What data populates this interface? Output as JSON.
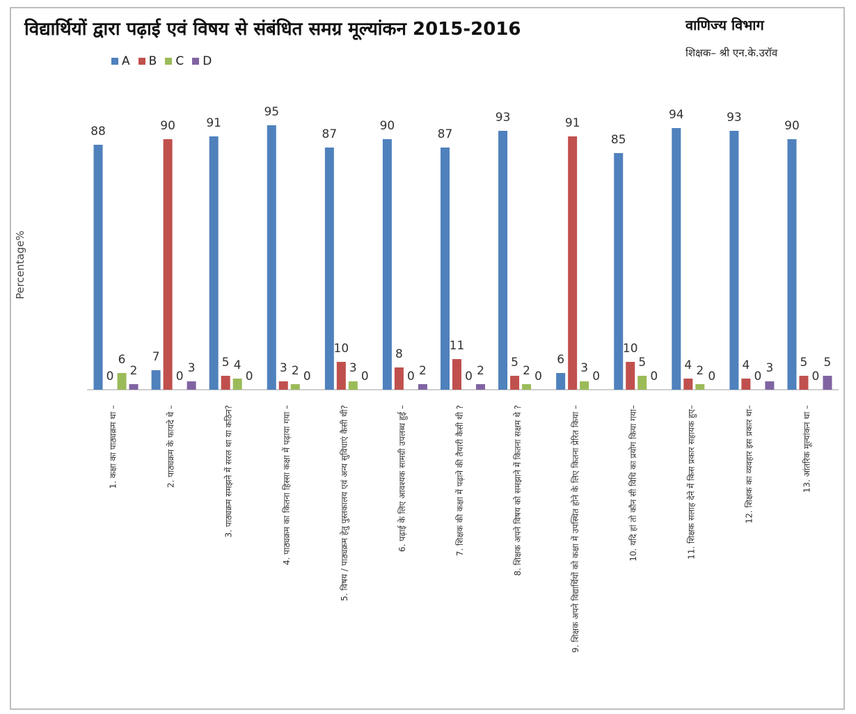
{
  "header": {
    "title": "विद्यार्थियों द्वारा पढ़ाई एवं विषय से संबंधित समग्र मूल्यांकन 2015-2016",
    "department": "वाणिज्य विभाग",
    "teacher": "शिक्षक– श्री एन.के.उरॉव"
  },
  "colors": {
    "A": "#4f81bd",
    "B": "#c0504d",
    "C": "#9bbb59",
    "D": "#8064a2"
  },
  "chart_data": {
    "type": "bar",
    "title": "विद्यार्थियों द्वारा पढ़ाई एवं विषय से संबंधित समग्र मूल्यांकन 2015-2016",
    "ylabel": "Percentage%",
    "xlabel": "",
    "legend_position": "top-left",
    "grid": false,
    "ylim": [
      0,
      100
    ],
    "categories": [
      "1. कक्षा का पाठ्यक्रम था –",
      "2. पाठ्यक्रम के फायदे थे –",
      "3. पाठ्यक्रम समझने में सरल था या कठिन?",
      "4. पाठ्यक्रम का कितना हिस्सा कक्षा में पढ़ाया गया –",
      "5. विषय / पाठ्यक्रम हेतु पुस्तकालय एवं अन्य सुविधाएं कैसी थी?",
      "6. पढ़ाई के लिए आवश्यक सामग्री उपलब्ध हुई –",
      "7. शिक्षक की कक्षा में पढ़ाने की तैयारी कैसी थी ?",
      "8. शिक्षक अपने विषय को समझाने में कितना सक्षम थे ?",
      "9. शिक्षक अपने विद्यार्थियों को कक्षा में उपस्थित होने के लिए कितना प्रेरित किया –",
      "10. यदि हां तो कौन सी विधि का प्रयोग किया गया–",
      "11. शिक्षक सलाह देने में किस प्रकार सहायक हुए–",
      "12. शिक्षक का व्यवहार इस प्रकार था–",
      "13. आंतरिक मूल्यांकन था –"
    ],
    "series": [
      {
        "name": "A",
        "values": [
          88,
          7,
          91,
          95,
          87,
          90,
          87,
          93,
          6,
          85,
          94,
          93,
          90
        ]
      },
      {
        "name": "B",
        "values": [
          0,
          90,
          5,
          3,
          10,
          8,
          11,
          5,
          91,
          10,
          4,
          4,
          5
        ]
      },
      {
        "name": "C",
        "values": [
          6,
          0,
          4,
          2,
          3,
          0,
          0,
          2,
          3,
          5,
          2,
          0,
          0
        ]
      },
      {
        "name": "D",
        "values": [
          2,
          3,
          0,
          0,
          0,
          2,
          2,
          0,
          0,
          0,
          0,
          3,
          5
        ]
      }
    ]
  }
}
